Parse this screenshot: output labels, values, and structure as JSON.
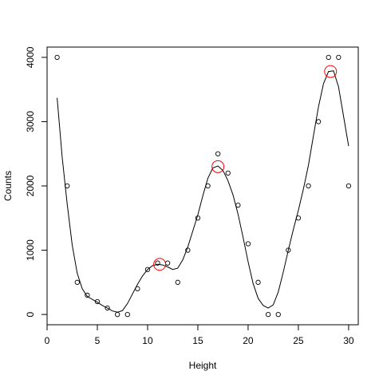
{
  "chart_data": {
    "type": "scatter",
    "title": "",
    "xlabel": "Height",
    "ylabel": "Counts",
    "xlim": [
      0,
      30.96
    ],
    "ylim": [
      -160,
      4160
    ],
    "x_ticks": [
      0,
      5,
      10,
      15,
      20,
      25,
      30
    ],
    "y_ticks": [
      0,
      1000,
      2000,
      3000,
      4000
    ],
    "grid": false,
    "legend": "none",
    "colors": {
      "points": "#000000",
      "curve": "#000000",
      "peaks": "#ff0000"
    },
    "series": [
      {
        "type": "scatter",
        "marker": "open-circle",
        "points": [
          [
            1,
            4000
          ],
          [
            2,
            2000
          ],
          [
            3,
            500
          ],
          [
            4,
            300
          ],
          [
            5,
            200
          ],
          [
            6,
            100
          ],
          [
            7,
            0
          ],
          [
            8,
            0
          ],
          [
            9,
            400
          ],
          [
            10,
            700
          ],
          [
            11,
            800
          ],
          [
            12,
            800
          ],
          [
            13,
            500
          ],
          [
            14,
            1000
          ],
          [
            15,
            1500
          ],
          [
            16,
            2000
          ],
          [
            17,
            2500
          ],
          [
            18,
            2200
          ],
          [
            19,
            1700
          ],
          [
            20,
            1100
          ],
          [
            21,
            500
          ],
          [
            22,
            0
          ],
          [
            23,
            0
          ],
          [
            24,
            1000
          ],
          [
            25,
            1500
          ],
          [
            26,
            2000
          ],
          [
            27,
            3000
          ],
          [
            28,
            4000
          ],
          [
            29,
            4000
          ],
          [
            30,
            2000
          ]
        ]
      },
      {
        "type": "line",
        "points": [
          [
            1,
            3370
          ],
          [
            1.5,
            2450
          ],
          [
            2,
            1720
          ],
          [
            2.5,
            1080
          ],
          [
            3,
            640
          ],
          [
            3.5,
            400
          ],
          [
            4,
            280
          ],
          [
            5,
            190
          ],
          [
            5.5,
            140
          ],
          [
            6,
            100
          ],
          [
            6.5,
            55
          ],
          [
            7,
            35
          ],
          [
            7.5,
            60
          ],
          [
            8,
            170
          ],
          [
            8.5,
            320
          ],
          [
            9,
            470
          ],
          [
            9.5,
            600
          ],
          [
            10,
            700
          ],
          [
            10.5,
            760
          ],
          [
            11,
            780
          ],
          [
            11.5,
            770
          ],
          [
            12,
            740
          ],
          [
            12.5,
            700
          ],
          [
            13,
            720
          ],
          [
            13.5,
            850
          ],
          [
            14,
            1050
          ],
          [
            14.5,
            1300
          ],
          [
            15,
            1550
          ],
          [
            15.5,
            1850
          ],
          [
            16,
            2120
          ],
          [
            16.5,
            2280
          ],
          [
            17,
            2310
          ],
          [
            17.5,
            2240
          ],
          [
            18,
            2080
          ],
          [
            18.5,
            1860
          ],
          [
            19,
            1560
          ],
          [
            19.5,
            1200
          ],
          [
            20,
            820
          ],
          [
            20.5,
            480
          ],
          [
            21,
            250
          ],
          [
            21.5,
            140
          ],
          [
            22,
            100
          ],
          [
            22.5,
            150
          ],
          [
            23,
            350
          ],
          [
            23.5,
            660
          ],
          [
            24,
            1000
          ],
          [
            24.5,
            1320
          ],
          [
            25,
            1620
          ],
          [
            25.5,
            1950
          ],
          [
            26,
            2320
          ],
          [
            26.5,
            2780
          ],
          [
            27,
            3230
          ],
          [
            27.5,
            3590
          ],
          [
            28,
            3780
          ],
          [
            28.5,
            3790
          ],
          [
            29,
            3540
          ],
          [
            29.5,
            3080
          ],
          [
            30,
            2620
          ]
        ]
      },
      {
        "type": "scatter",
        "marker": "large-open-circle",
        "points": [
          [
            11.2,
            780
          ],
          [
            17.0,
            2300
          ],
          [
            28.2,
            3780
          ]
        ]
      }
    ]
  }
}
